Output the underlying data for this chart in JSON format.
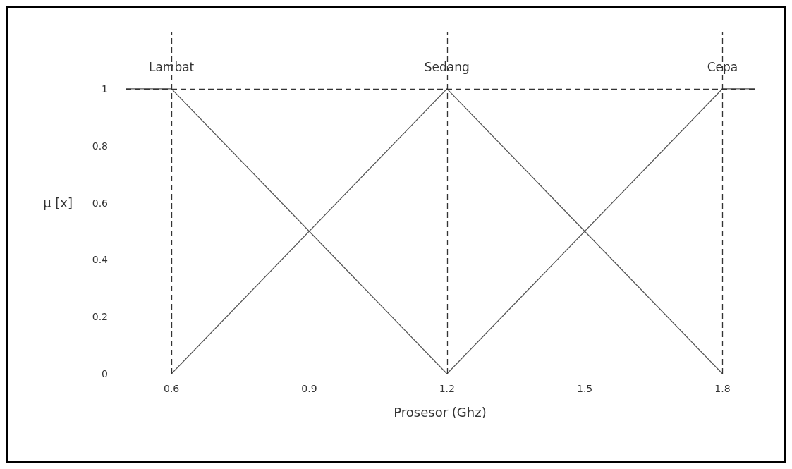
{
  "chart_data": {
    "type": "line",
    "xlabel": "Prosesor (Ghz)",
    "ylabel": "μ [x]",
    "xlim": [
      0.5,
      1.87
    ],
    "xticks": [
      0.6,
      0.9,
      1.2,
      1.5,
      1.8
    ],
    "ylim": [
      0,
      1.2
    ],
    "yticks": [
      0,
      0.2,
      0.4,
      0.6,
      0.8,
      1
    ],
    "series": [
      {
        "name": "Lambat",
        "color": "#555555",
        "x": [
          0.5,
          0.6,
          1.2
        ],
        "values": [
          1,
          1,
          0
        ]
      },
      {
        "name": "Sedang",
        "color": "#555555",
        "x": [
          0.6,
          1.2,
          1.8
        ],
        "values": [
          0,
          1,
          0
        ]
      },
      {
        "name": "Cepa",
        "color": "#555555",
        "x": [
          1.2,
          1.8,
          1.87
        ],
        "values": [
          0,
          1,
          1
        ]
      }
    ],
    "ref_lines": [
      {
        "axis": "y",
        "value": 1,
        "color": "#333333",
        "line_style": "dashed"
      },
      {
        "axis": "x",
        "value": 0.6,
        "color": "#333333",
        "line_style": "dashed"
      },
      {
        "axis": "x",
        "value": 1.2,
        "color": "#333333",
        "line_style": "dashed"
      },
      {
        "axis": "x",
        "value": 1.8,
        "color": "#333333",
        "line_style": "dashed"
      }
    ],
    "grid": false,
    "legend": false,
    "marker": "none",
    "line_style": "solid"
  }
}
